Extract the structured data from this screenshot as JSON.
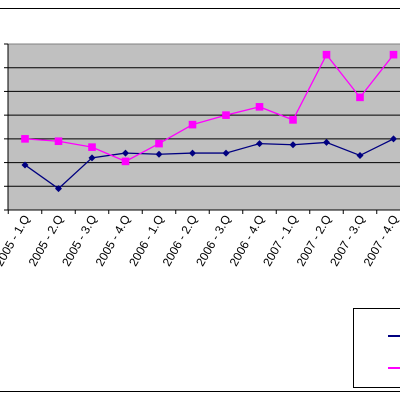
{
  "chart_data": {
    "type": "line",
    "categories": [
      "2005 - 1.Q",
      "2005 - 2.Q",
      "2005 - 3.Q",
      "2005 - 4.Q",
      "2006 - 1.Q",
      "2006 - 2.Q",
      "2006 - 3.Q",
      "2006 - 4.Q",
      "2007 - 1.Q",
      "2007 - 2.Q",
      "2007 - 3.Q",
      "2007 - 4.Q"
    ],
    "series": [
      {
        "color": "#000080",
        "marker": "diamond",
        "values": [
          1.9,
          0.9,
          2.2,
          2.4,
          2.35,
          2.4,
          2.4,
          2.8,
          2.75,
          2.85,
          2.3,
          3.0
        ]
      },
      {
        "color": "#ff00ff",
        "marker": "square",
        "values": [
          3.0,
          2.9,
          2.65,
          2.05,
          2.8,
          3.6,
          4.0,
          4.35,
          3.8,
          6.55,
          4.75,
          6.55
        ]
      }
    ],
    "ylim": [
      0,
      7
    ],
    "grid": true,
    "plot_background": "#c0c0c0",
    "legend_placement": "bottom-right"
  }
}
